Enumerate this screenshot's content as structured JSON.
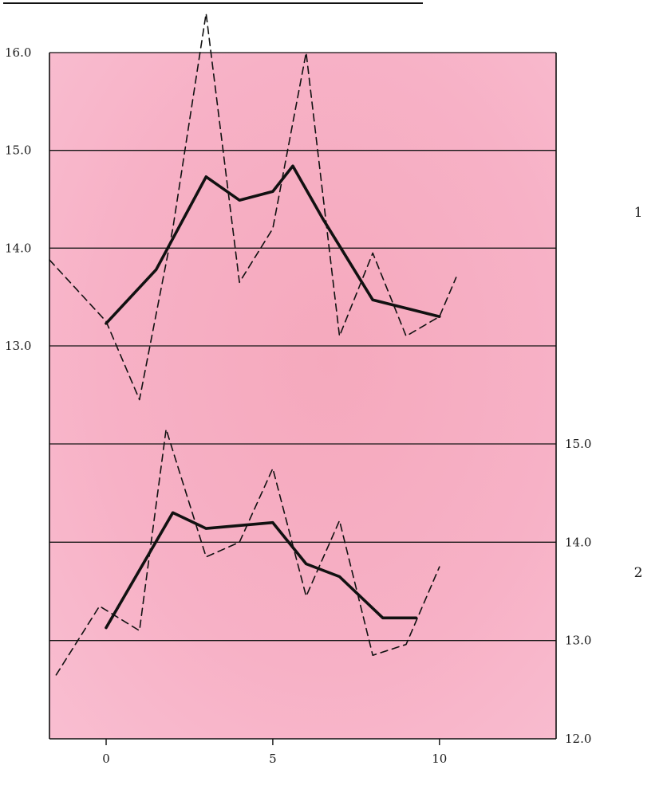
{
  "chart_data": {
    "type": "line",
    "background_color": "#f7b1c6",
    "grid": "horizontal",
    "x_axis": {
      "ticks": [
        0,
        5,
        10
      ],
      "tick_labels": [
        "0",
        "5",
        "10"
      ],
      "range": [
        -1.7,
        13.5
      ]
    },
    "panels": [
      {
        "label": "1",
        "y_axis_side": "left",
        "y_range": [
          13.0,
          16.0
        ],
        "y_ticks": [
          13.0,
          14.0,
          15.0,
          16.0
        ],
        "y_tick_labels": [
          "13.0",
          "14.0",
          "15.0",
          "16.0"
        ],
        "series": [
          {
            "style": "dashed",
            "x": [
              -1.7,
              0,
              1,
              2,
              3,
              4,
              5,
              6,
              7,
              8,
              9,
              10,
              10.5
            ],
            "y": [
              13.88,
              13.25,
              12.45,
              14.2,
              16.4,
              13.65,
              14.2,
              16.0,
              13.1,
              13.95,
              13.1,
              13.3,
              13.7
            ]
          },
          {
            "style": "solid",
            "x": [
              0,
              1.5,
              3,
              4,
              5,
              5.6,
              6.5,
              8,
              10
            ],
            "y": [
              13.23,
              13.78,
              14.73,
              14.49,
              14.58,
              14.84,
              14.3,
              13.47,
              13.3
            ]
          }
        ]
      },
      {
        "label": "2",
        "y_axis_side": "right",
        "y_range": [
          12.0,
          15.0
        ],
        "y_ticks": [
          12.0,
          13.0,
          14.0,
          15.0
        ],
        "y_tick_labels": [
          "12.0",
          "13.0",
          "14.0",
          "15.0"
        ],
        "series": [
          {
            "style": "dashed",
            "x": [
              -1.5,
              -0.2,
              1,
              1.8,
              3,
              4,
              5,
              6,
              7,
              8,
              9,
              10
            ],
            "y": [
              12.65,
              13.35,
              13.1,
              15.15,
              13.85,
              14.0,
              14.75,
              13.45,
              14.22,
              12.85,
              12.96,
              13.75
            ]
          },
          {
            "style": "solid",
            "x": [
              0,
              2,
              3,
              5,
              6,
              7,
              8.3,
              9.3
            ],
            "y": [
              13.13,
              14.3,
              14.14,
              14.2,
              13.78,
              13.65,
              13.23,
              13.23
            ]
          }
        ]
      }
    ]
  }
}
